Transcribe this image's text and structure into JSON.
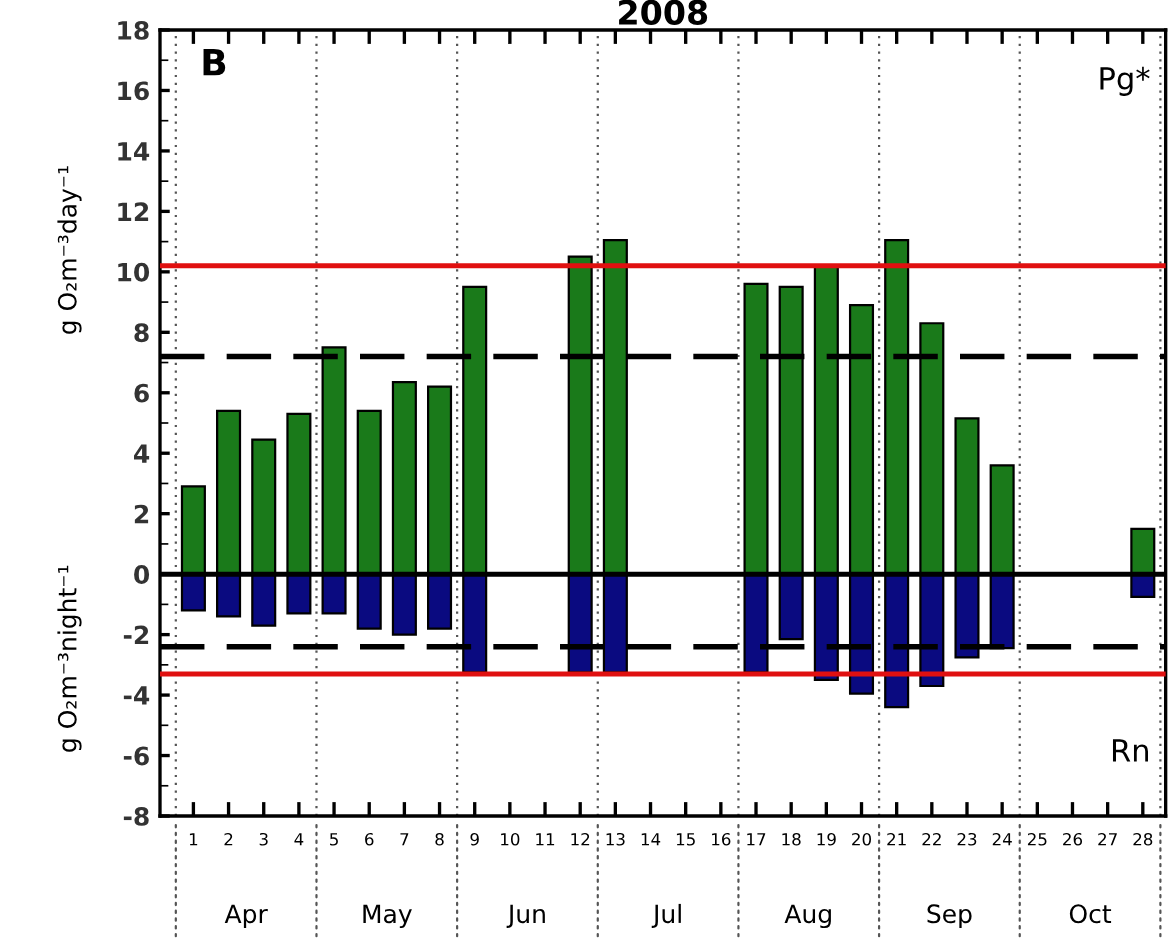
{
  "chart_data": {
    "type": "bar",
    "title": "2008",
    "ylabel": "g O₂m⁻³day⁻¹",
    "categories": [
      "1",
      "2",
      "3",
      "4",
      "5",
      "6",
      "7",
      "8",
      "9",
      "10",
      "11",
      "12",
      "13",
      "14",
      "15",
      "16",
      "17",
      "18",
      "19",
      "20",
      "21",
      "22",
      "23",
      "24",
      "25",
      "26",
      "27",
      "28"
    ],
    "series": [
      {
        "color": "#1a7a1a",
        "values": [
          2.9,
          5.4,
          4.45,
          5.3,
          7.5,
          5.4,
          6.35,
          6.2,
          9.5,
          null,
          null,
          10.5,
          11.05,
          null,
          null,
          null,
          9.6,
          9.5,
          10.2,
          8.9,
          11.05,
          8.3,
          5.15,
          3.6,
          null,
          null,
          null,
          1.5
        ]
      },
      {
        "color": "#0a0a80",
        "values": [
          -1.2,
          -1.4,
          -1.7,
          -1.3,
          -1.3,
          -1.8,
          -2.0,
          -1.8,
          -3.25,
          null,
          null,
          -3.25,
          -3.25,
          null,
          null,
          null,
          -3.25,
          -2.15,
          -3.5,
          -3.95,
          -4.4,
          -3.7,
          -2.75,
          -2.45,
          null,
          null,
          null,
          -0.75
        ]
      }
    ],
    "stacked": true,
    "ylim": [
      -8,
      18
    ],
    "yticks": [
      -8,
      -6,
      -4,
      -2,
      0,
      2,
      4,
      6,
      8,
      10,
      12,
      14,
      16,
      18
    ],
    "ref_lines": [
      {
        "axis": "y",
        "value": 10.2,
        "color": "#e01010",
        "line_style": "solid"
      },
      {
        "axis": "y",
        "value": 7.2,
        "color": "#000000",
        "line_style": "dashed"
      },
      {
        "axis": "y",
        "value": 0,
        "color": "#000000",
        "line_style": "solid"
      },
      {
        "axis": "y",
        "value": -2.4,
        "color": "#000000",
        "line_style": "dashed"
      },
      {
        "axis": "y",
        "value": -3.3,
        "color": "#e01010",
        "line_style": "solid"
      }
    ],
    "annotations": [
      "B",
      "Pg*",
      "Rn",
      "g O₂m⁻³night⁻¹",
      "Apr",
      "May",
      "Jun",
      "Jul",
      "Aug",
      "Sep",
      "Oct"
    ]
  }
}
